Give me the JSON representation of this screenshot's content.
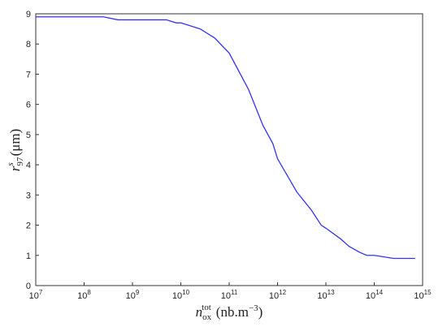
{
  "chart_data": {
    "type": "line",
    "xscale": "log",
    "xlabel": {
      "base": "n",
      "sub": "ox",
      "sup": "tot",
      "unit": "(nb.m",
      "unit_sup": "−3",
      "close": ")"
    },
    "ylabel": {
      "base": "r",
      "sub": "97",
      "sup": "s",
      "unit": "(μm)"
    },
    "x": [
      10000000,
      250000000,
      500000000,
      5000000000,
      8000000000,
      10000000000,
      25000000000,
      50000000000,
      100000000000,
      250000000000,
      500000000000,
      800000000000,
      1000000000000,
      2500000000000,
      5000000000000,
      8000000000000,
      10000000000000,
      20000000000000,
      30000000000000,
      50000000000000,
      70000000000000,
      100000000000000,
      250000000000000,
      700000000000000
    ],
    "series": [
      {
        "color": "#3333ee",
        "values": [
          8.9,
          8.9,
          8.8,
          8.8,
          8.7,
          8.7,
          8.5,
          8.2,
          7.7,
          6.5,
          5.3,
          4.7,
          4.2,
          3.1,
          2.5,
          2.0,
          1.9,
          1.55,
          1.3,
          1.1,
          1.0,
          1.0,
          0.9,
          0.9
        ]
      }
    ],
    "xlim": [
      10000000,
      1000000000000000
    ],
    "xticks": [
      {
        "value": 10000000,
        "label": "10",
        "sup": "7"
      },
      {
        "value": 100000000,
        "label": "10",
        "sup": "8"
      },
      {
        "value": 1000000000,
        "label": "10",
        "sup": "9"
      },
      {
        "value": 10000000000,
        "label": "10",
        "sup": "10"
      },
      {
        "value": 100000000000,
        "label": "10",
        "sup": "11"
      },
      {
        "value": 1000000000000,
        "label": "10",
        "sup": "12"
      },
      {
        "value": 10000000000000,
        "label": "10",
        "sup": "13"
      },
      {
        "value": 100000000000000,
        "label": "10",
        "sup": "14"
      },
      {
        "value": 1000000000000000,
        "label": "10",
        "sup": "15"
      }
    ],
    "ylim": [
      0,
      9
    ],
    "yticks": [
      0,
      1,
      2,
      3,
      4,
      5,
      6,
      7,
      8,
      9
    ]
  }
}
